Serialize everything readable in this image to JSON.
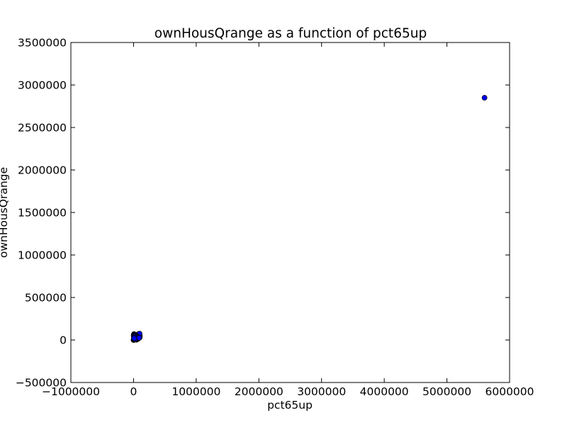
{
  "chart_data": {
    "type": "scatter",
    "title": "ownHousQrange as a function of pct65up",
    "xlabel": "pct65up",
    "ylabel": "ownHousQrange",
    "xlim": [
      -1000000,
      6000000
    ],
    "ylim": [
      -500000,
      3500000
    ],
    "xticks": [
      -1000000,
      0,
      1000000,
      2000000,
      3000000,
      4000000,
      5000000,
      6000000
    ],
    "xtick_labels": [
      "−1000000",
      "0",
      "1000000",
      "2000000",
      "3000000",
      "4000000",
      "5000000",
      "6000000"
    ],
    "yticks": [
      -500000,
      0,
      500000,
      1000000,
      1500000,
      2000000,
      2500000,
      3000000,
      3500000
    ],
    "ytick_labels": [
      "−500000",
      "0",
      "500000",
      "1000000",
      "1500000",
      "2000000",
      "2500000",
      "3000000",
      "3500000"
    ],
    "grid": false,
    "marker_color": "#0000ff",
    "series": [
      {
        "x": [
          5600000,
          0,
          5000,
          10000,
          15000,
          20000,
          25000,
          30000,
          35000,
          40000,
          45000,
          50000,
          55000,
          60000,
          65000,
          70000,
          75000,
          80000,
          85000,
          90000,
          95000,
          100000,
          3000,
          8000,
          12000,
          18000,
          22000,
          28000,
          33000,
          38000,
          42000,
          48000,
          52000,
          58000,
          62000,
          68000,
          72000,
          78000,
          82000,
          88000,
          92000,
          98000,
          1000,
          7000,
          14000,
          24000,
          34000,
          44000,
          54000,
          64000,
          74000,
          84000,
          94000,
          2000,
          6000,
          4000,
          16000,
          26000,
          36000,
          46000,
          56000,
          66000,
          76000,
          86000,
          96000,
          20000,
          30000,
          40000,
          50000,
          60000,
          70000,
          80000,
          90000,
          10000
        ],
        "y": [
          2850000,
          0,
          2000,
          5000,
          8000,
          10000,
          12000,
          15000,
          18000,
          20000,
          22000,
          25000,
          28000,
          30000,
          32000,
          35000,
          38000,
          40000,
          42000,
          45000,
          48000,
          50000,
          60000,
          70000,
          65000,
          55000,
          45000,
          35000,
          25000,
          15000,
          5000,
          3000,
          6000,
          9000,
          11000,
          14000,
          17000,
          19000,
          21000,
          24000,
          27000,
          30000,
          1000,
          4000,
          7000,
          13000,
          16000,
          23000,
          26000,
          29000,
          33000,
          36000,
          39000,
          50000,
          40000,
          30000,
          20000,
          10000,
          47000,
          52000,
          57000,
          62000,
          67000,
          72000,
          75000,
          60000,
          55000,
          50000,
          45000,
          40000,
          35000,
          30000,
          25000,
          20000
        ]
      }
    ]
  }
}
